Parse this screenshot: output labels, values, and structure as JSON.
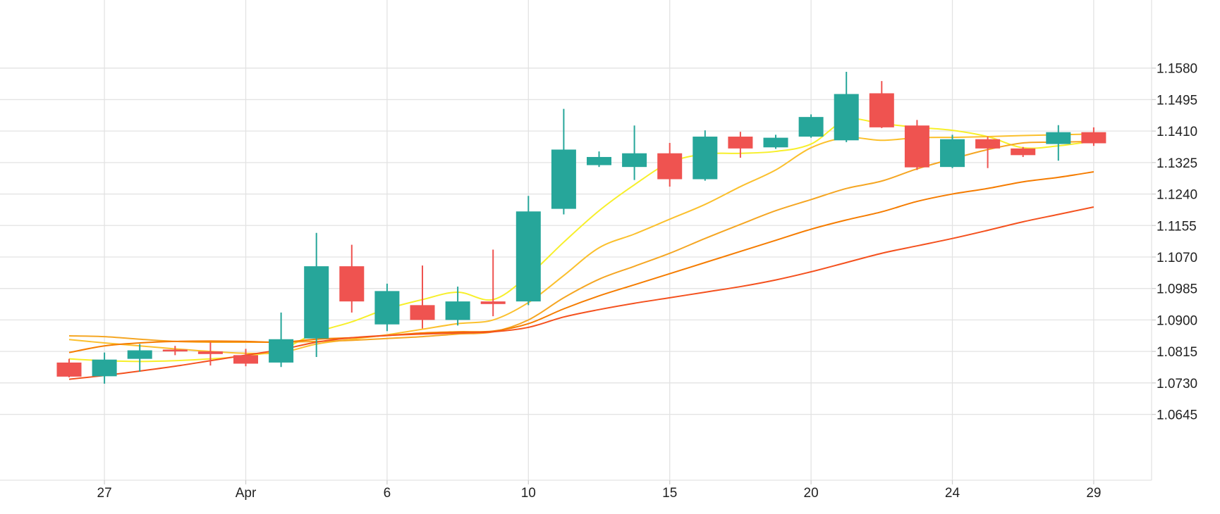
{
  "chart_data": {
    "type": "candlestick",
    "title": "",
    "xlabel": "",
    "ylabel": "",
    "x_ticks": [
      {
        "index": 1,
        "label": "27"
      },
      {
        "index": 5,
        "label": "Apr"
      },
      {
        "index": 9,
        "label": "6"
      },
      {
        "index": 13,
        "label": "10"
      },
      {
        "index": 17,
        "label": "15"
      },
      {
        "index": 21,
        "label": "20"
      },
      {
        "index": 25,
        "label": "24"
      },
      {
        "index": 29,
        "label": "29"
      }
    ],
    "y_ticks": [
      "1.1580",
      "1.1495",
      "1.1410",
      "1.1325",
      "1.1240",
      "1.1155",
      "1.1070",
      "1.0985",
      "1.0900",
      "1.0815",
      "1.0730",
      "1.0645"
    ],
    "ylim": [
      1.057,
      1.1665
    ],
    "grid": true,
    "up_color": "#26a69a",
    "down_color": "#ef5350",
    "candles": [
      {
        "o": 1.0785,
        "h": 1.0795,
        "l": 1.0745,
        "c": 1.0747
      },
      {
        "o": 1.0748,
        "h": 1.0812,
        "l": 1.0728,
        "c": 1.0793
      },
      {
        "o": 1.0795,
        "h": 1.0835,
        "l": 1.076,
        "c": 1.0818
      },
      {
        "o": 1.082,
        "h": 1.083,
        "l": 1.0805,
        "c": 1.0815
      },
      {
        "o": 1.0815,
        "h": 1.084,
        "l": 1.0777,
        "c": 1.0808
      },
      {
        "o": 1.0805,
        "h": 1.0822,
        "l": 1.0775,
        "c": 1.0782
      },
      {
        "o": 1.0785,
        "h": 1.092,
        "l": 1.0773,
        "c": 1.0848
      },
      {
        "o": 1.085,
        "h": 1.1135,
        "l": 1.08,
        "c": 1.1045
      },
      {
        "o": 1.1045,
        "h": 1.1103,
        "l": 1.092,
        "c": 1.095
      },
      {
        "o": 1.0888,
        "h": 1.0998,
        "l": 1.087,
        "c": 1.0978
      },
      {
        "o": 1.094,
        "h": 1.1047,
        "l": 1.0877,
        "c": 1.09
      },
      {
        "o": 1.09,
        "h": 1.099,
        "l": 1.0885,
        "c": 1.095
      },
      {
        "o": 1.095,
        "h": 1.109,
        "l": 1.091,
        "c": 1.0943
      },
      {
        "o": 1.095,
        "h": 1.1235,
        "l": 1.094,
        "c": 1.1193
      },
      {
        "o": 1.12,
        "h": 1.147,
        "l": 1.1185,
        "c": 1.136
      },
      {
        "o": 1.1318,
        "h": 1.1355,
        "l": 1.1313,
        "c": 1.134
      },
      {
        "o": 1.1313,
        "h": 1.1425,
        "l": 1.1278,
        "c": 1.135
      },
      {
        "o": 1.135,
        "h": 1.1378,
        "l": 1.126,
        "c": 1.128
      },
      {
        "o": 1.128,
        "h": 1.1412,
        "l": 1.1276,
        "c": 1.1395
      },
      {
        "o": 1.1395,
        "h": 1.1408,
        "l": 1.1338,
        "c": 1.1363
      },
      {
        "o": 1.1366,
        "h": 1.14,
        "l": 1.1362,
        "c": 1.1392
      },
      {
        "o": 1.1395,
        "h": 1.1455,
        "l": 1.1392,
        "c": 1.1448
      },
      {
        "o": 1.1385,
        "h": 1.157,
        "l": 1.138,
        "c": 1.151
      },
      {
        "o": 1.1512,
        "h": 1.1545,
        "l": 1.1418,
        "c": 1.142
      },
      {
        "o": 1.1425,
        "h": 1.144,
        "l": 1.1305,
        "c": 1.1312
      },
      {
        "o": 1.1313,
        "h": 1.14,
        "l": 1.131,
        "c": 1.1388
      },
      {
        "o": 1.1388,
        "h": 1.1395,
        "l": 1.131,
        "c": 1.1363
      },
      {
        "o": 1.1363,
        "h": 1.1367,
        "l": 1.134,
        "c": 1.1345
      },
      {
        "o": 1.1375,
        "h": 1.1426,
        "l": 1.133,
        "c": 1.1407
      },
      {
        "o": 1.1407,
        "h": 1.142,
        "l": 1.137,
        "c": 1.1377
      }
    ],
    "moving_averages": [
      {
        "color": "#f7ef2a",
        "values": [
          1.0795,
          1.079,
          1.0788,
          1.079,
          1.0795,
          1.0803,
          1.082,
          1.0866,
          1.0895,
          1.093,
          1.0955,
          1.0975,
          1.0955,
          1.102,
          1.111,
          1.1195,
          1.1265,
          1.1325,
          1.1348,
          1.135,
          1.1355,
          1.1375,
          1.144,
          1.143,
          1.142,
          1.1412,
          1.1395,
          1.1365,
          1.137,
          1.1383
        ]
      },
      {
        "color": "#fbc02d",
        "values": [
          1.0847,
          1.0838,
          1.083,
          1.0822,
          1.0815,
          1.081,
          1.0812,
          1.0835,
          1.0848,
          1.086,
          1.0875,
          1.089,
          1.09,
          1.0947,
          1.102,
          1.1095,
          1.1132,
          1.1172,
          1.1212,
          1.126,
          1.1305,
          1.1365,
          1.1392,
          1.1385,
          1.1392,
          1.1393,
          1.1395,
          1.1398,
          1.14,
          1.1402
        ]
      },
      {
        "color": "#f5a623",
        "values": [
          1.0857,
          1.0855,
          1.0848,
          1.0842,
          1.084,
          1.084,
          1.084,
          1.0842,
          1.0845,
          1.085,
          1.0855,
          1.0862,
          1.0868,
          1.09,
          1.096,
          1.101,
          1.1045,
          1.108,
          1.112,
          1.1158,
          1.1195,
          1.1225,
          1.1255,
          1.1275,
          1.1308,
          1.1335,
          1.136,
          1.1378,
          1.138,
          1.1382
        ]
      },
      {
        "color": "#f57c00",
        "values": [
          1.0812,
          1.083,
          1.0838,
          1.0842,
          1.0843,
          1.0842,
          1.084,
          1.0848,
          1.0852,
          1.0858,
          1.0865,
          1.0868,
          1.087,
          1.089,
          1.093,
          1.0965,
          1.0995,
          1.1025,
          1.1055,
          1.1085,
          1.1115,
          1.1145,
          1.117,
          1.1192,
          1.122,
          1.124,
          1.1255,
          1.1273,
          1.1285,
          1.13
        ]
      },
      {
        "color": "#f4511e",
        "values": [
          1.074,
          1.075,
          1.0762,
          1.0775,
          1.079,
          1.0805,
          1.082,
          1.084,
          1.0852,
          1.0858,
          1.0862,
          1.0865,
          1.0868,
          1.088,
          1.0908,
          1.0928,
          1.0945,
          1.096,
          1.0975,
          1.099,
          1.1008,
          1.103,
          1.1055,
          1.108,
          1.11,
          1.112,
          1.1142,
          1.1165,
          1.1185,
          1.1205
        ]
      }
    ]
  }
}
